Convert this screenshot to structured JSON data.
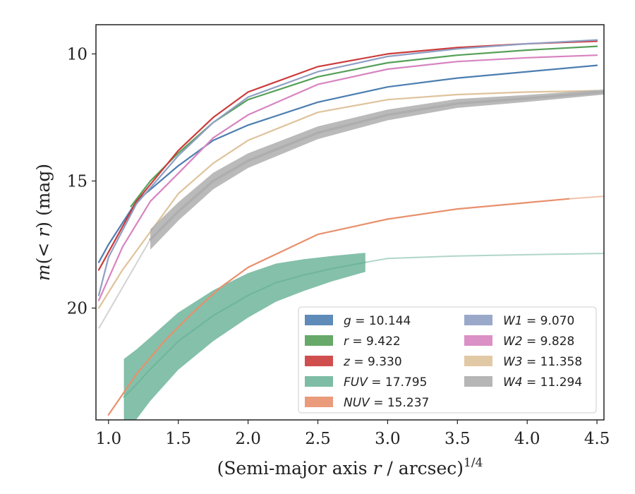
{
  "chart_data": {
    "type": "line",
    "title": "",
    "xlabel": "(Semi-major axis r / arcsec)",
    "xlabel_exponent": "1/4",
    "ylabel": "m(< r) (mag)",
    "xlim": [
      0.91,
      4.55
    ],
    "ylim": [
      24.4,
      8.85
    ],
    "y_inverted": true,
    "grid": false,
    "legend_placement": "lower-right",
    "x_ticks": [
      {
        "value": 1.0,
        "label": "1.0"
      },
      {
        "value": 1.5,
        "label": "1.5"
      },
      {
        "value": 2.0,
        "label": "2.0"
      },
      {
        "value": 2.5,
        "label": "2.5"
      },
      {
        "value": 3.0,
        "label": "3.0"
      },
      {
        "value": 3.5,
        "label": "3.5"
      },
      {
        "value": 4.0,
        "label": "4.0"
      },
      {
        "value": 4.5,
        "label": "4.5"
      }
    ],
    "y_ticks": [
      {
        "value": 10,
        "label": "10"
      },
      {
        "value": 15,
        "label": "15"
      },
      {
        "value": 20,
        "label": "20"
      }
    ],
    "series": [
      {
        "name": "g",
        "value": "10.144",
        "color": "#4c7eb0",
        "width": 2.2,
        "band": 0,
        "x": [
          0.93,
          1.0,
          1.2,
          1.5,
          1.75,
          2.0,
          2.5,
          3.0,
          3.5,
          4.0,
          4.5
        ],
        "y": [
          18.2,
          17.5,
          15.8,
          14.4,
          13.4,
          12.8,
          11.9,
          11.3,
          10.95,
          10.7,
          10.45
        ],
        "faint_x": [],
        "faint_y": []
      },
      {
        "name": "r",
        "value": "9.422",
        "color": "#55a058",
        "width": 2.2,
        "band": 0,
        "x": [
          1.16,
          1.3,
          1.5,
          1.75,
          2.0,
          2.5,
          3.0,
          3.5,
          4.0,
          4.5
        ],
        "y": [
          16.0,
          15.0,
          13.9,
          12.7,
          11.8,
          10.9,
          10.35,
          10.05,
          9.85,
          9.7
        ],
        "faint_x": [],
        "faint_y": []
      },
      {
        "name": "z",
        "value": "9.330",
        "color": "#cc3b3b",
        "width": 2.2,
        "band": 0,
        "x": [
          0.93,
          1.0,
          1.2,
          1.5,
          1.75,
          2.0,
          2.5,
          3.0,
          3.5,
          4.0,
          4.5
        ],
        "y": [
          18.5,
          17.8,
          15.8,
          13.8,
          12.5,
          11.5,
          10.5,
          10.0,
          9.75,
          9.6,
          9.5
        ],
        "faint_x": [],
        "faint_y": []
      },
      {
        "name": "FUV",
        "value": "17.795",
        "color": "#6fb59b",
        "width": 2,
        "band": 1.5,
        "x": [
          1.11,
          1.2,
          1.3,
          1.5,
          1.75,
          2.0,
          2.2,
          2.4,
          2.6,
          2.84
        ],
        "y": [
          23.5,
          23.0,
          22.4,
          21.3,
          20.3,
          19.5,
          19.0,
          18.7,
          18.45,
          18.2
        ],
        "faint_x": [
          2.84,
          3.0,
          3.5,
          4.0,
          4.55
        ],
        "faint_y": [
          18.2,
          18.05,
          17.95,
          17.9,
          17.85
        ]
      },
      {
        "name": "NUV",
        "value": "15.237",
        "color": "#e8906d",
        "width": 2.2,
        "band": 0,
        "x": [
          1.0,
          1.2,
          1.4,
          1.6,
          1.8,
          2.0,
          2.5,
          3.0,
          3.5,
          4.0,
          4.3
        ],
        "y": [
          24.2,
          22.6,
          21.3,
          20.2,
          19.2,
          18.4,
          17.1,
          16.5,
          16.1,
          15.85,
          15.7
        ],
        "faint_x": [
          4.3,
          4.55
        ],
        "faint_y": [
          15.7,
          15.6
        ]
      },
      {
        "name": "W1",
        "value": "9.070",
        "color": "#8f9fc4",
        "width": 2.2,
        "band": 0,
        "x": [
          0.93,
          1.0,
          1.2,
          1.5,
          1.75,
          2.0,
          2.5,
          3.0,
          3.5,
          4.0,
          4.5
        ],
        "y": [
          19.5,
          18.0,
          15.9,
          14.0,
          12.7,
          11.7,
          10.7,
          10.1,
          9.8,
          9.6,
          9.45
        ],
        "faint_x": [],
        "faint_y": []
      },
      {
        "name": "W2",
        "value": "9.828",
        "color": "#d784c0",
        "width": 2.2,
        "band": 0,
        "x": [
          0.93,
          1.1,
          1.3,
          1.5,
          1.75,
          2.0,
          2.5,
          3.0,
          3.5,
          4.0,
          4.5
        ],
        "y": [
          19.7,
          17.6,
          15.8,
          14.7,
          13.3,
          12.4,
          11.2,
          10.6,
          10.3,
          10.15,
          10.05
        ],
        "faint_x": [],
        "faint_y": []
      },
      {
        "name": "W3",
        "value": "11.358",
        "color": "#dfc39c",
        "width": 2.2,
        "band": 0,
        "x": [
          0.93,
          1.1,
          1.3,
          1.5,
          1.75,
          2.0,
          2.5,
          3.0,
          3.5,
          4.0,
          4.5
        ],
        "y": [
          20.0,
          18.5,
          17.0,
          15.5,
          14.3,
          13.4,
          12.3,
          11.8,
          11.6,
          11.5,
          11.45
        ],
        "faint_x": [],
        "faint_y": []
      },
      {
        "name": "W4",
        "value": "11.294",
        "color": "#aeaeae",
        "width": 3.5,
        "band": 0.4,
        "x": [
          1.3,
          1.5,
          1.75,
          2.0,
          2.5,
          3.0,
          3.5,
          4.0,
          4.55
        ],
        "y": [
          17.3,
          16.2,
          15.0,
          14.2,
          13.1,
          12.4,
          11.95,
          11.75,
          11.5
        ],
        "faint_x": [
          0.93,
          1.3
        ],
        "faint_y": [
          20.8,
          17.3
        ]
      }
    ]
  }
}
